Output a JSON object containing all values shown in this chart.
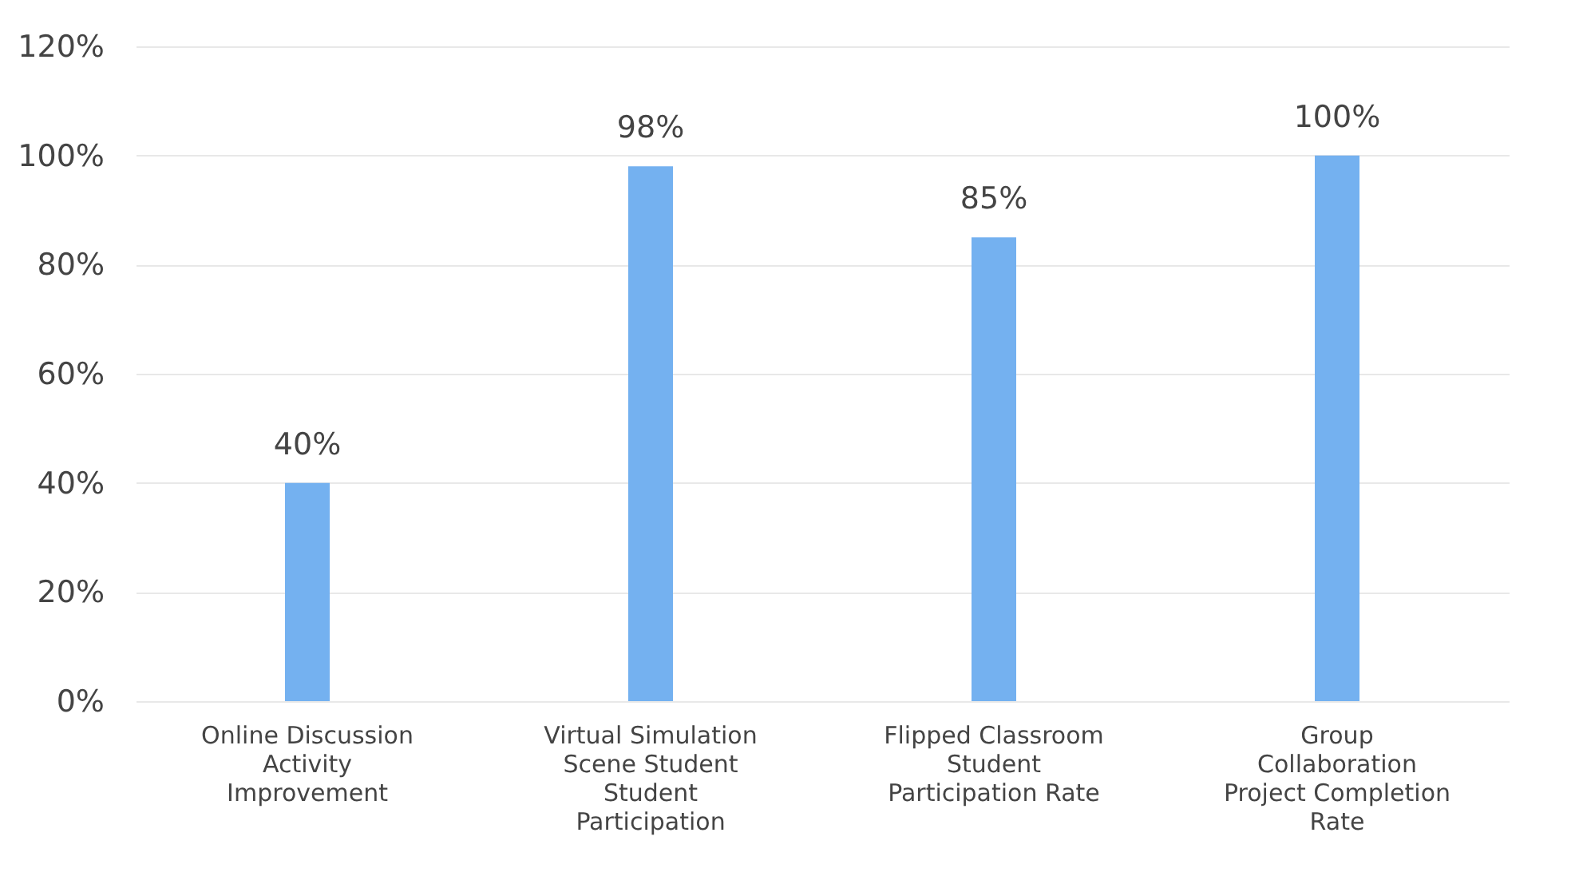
{
  "chart_data": {
    "type": "bar",
    "categories": [
      "Online Discussion Activity Improvement",
      "Virtual Simulation Scene Student Student Participation",
      "Flipped Classroom Student Participation Rate",
      "Group Collaboration Project Completion Rate"
    ],
    "values": [
      40,
      98,
      85,
      100
    ],
    "value_labels": [
      "40%",
      "98%",
      "85%",
      "100%"
    ],
    "color": "#74b1f0",
    "ylim": [
      0,
      120
    ],
    "yticks": [
      {
        "value": 0,
        "label": "0%"
      },
      {
        "value": 20,
        "label": "20%"
      },
      {
        "value": 40,
        "label": "40%"
      },
      {
        "value": 60,
        "label": "60%"
      },
      {
        "value": 80,
        "label": "80%"
      },
      {
        "value": 100,
        "label": "100%"
      },
      {
        "value": 120,
        "label": "120%"
      }
    ],
    "grid": "y"
  }
}
